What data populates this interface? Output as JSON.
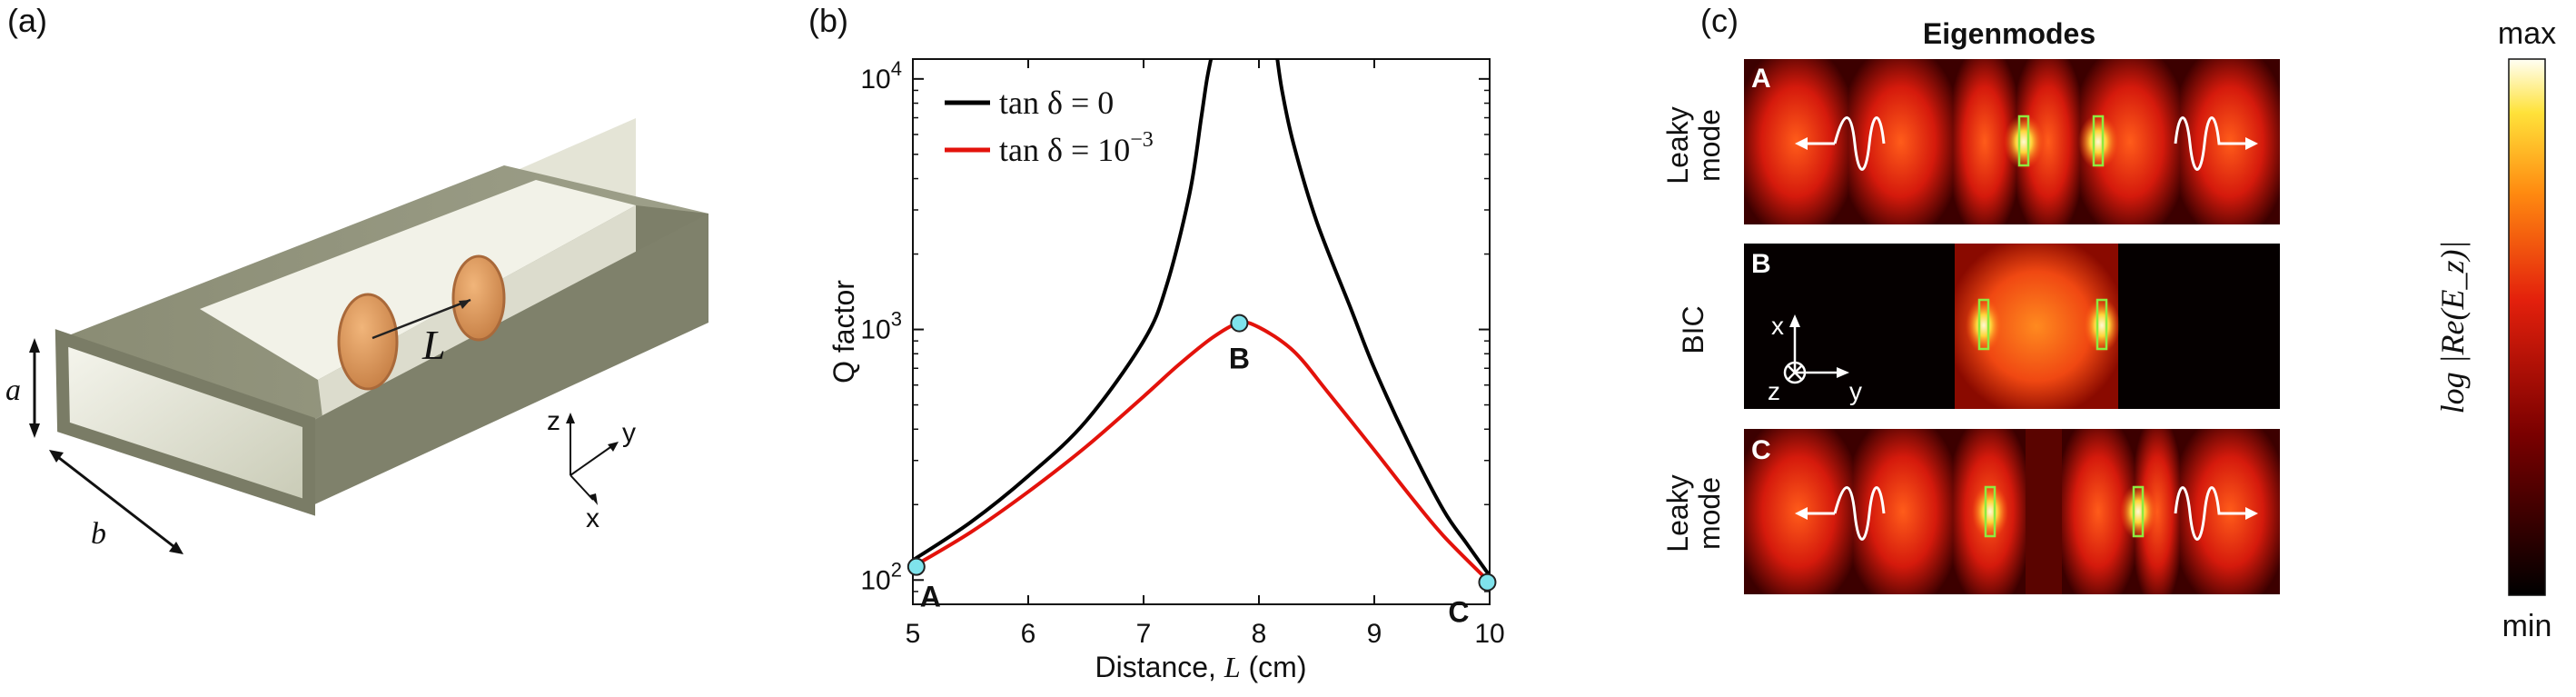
{
  "panels": {
    "a": "(a)",
    "b": "(b)",
    "c": "(c)"
  },
  "panel_a": {
    "length_label": "L",
    "dim_a": "a",
    "dim_b": "b",
    "axes": {
      "x": "x",
      "y": "y",
      "z": "z"
    },
    "colors": {
      "wall": "#8e907a",
      "disk": "#d4945a"
    }
  },
  "chart_data": {
    "type": "line",
    "title": "",
    "xlabel_prefix": "Distance, ",
    "xlabel_var": "L",
    "xlabel_suffix": " (cm)",
    "ylabel": "Q factor",
    "xlim": [
      5,
      10
    ],
    "ylim": [
      80,
      12000
    ],
    "yscale": "log",
    "xticks": [
      5,
      6,
      7,
      8,
      9,
      10
    ],
    "yticks": [
      {
        "value": 100,
        "base": "10",
        "exp": "2"
      },
      {
        "value": 1000,
        "base": "10",
        "exp": "3"
      },
      {
        "value": 10000,
        "base": "10",
        "exp": "4"
      }
    ],
    "series": [
      {
        "name": "tan δ = 0",
        "legend_prefix": "tan δ = 0",
        "legend_exp": "",
        "color": "#000000",
        "x": [
          5.0,
          5.5,
          6.0,
          6.5,
          7.0,
          7.2,
          7.4,
          7.5,
          7.55,
          7.6
        ],
        "y": [
          120,
          170,
          260,
          430,
          900,
          1500,
          3500,
          7000,
          10000,
          13000
        ]
      },
      {
        "name": "tan δ = 0",
        "legend_prefix": "",
        "legend_exp": "",
        "color": "#000000",
        "x": [
          8.15,
          8.2,
          8.3,
          8.5,
          8.8,
          9.0,
          9.3,
          9.6,
          9.8,
          10.0
        ],
        "y": [
          13000,
          9000,
          5500,
          2700,
          1200,
          700,
          350,
          190,
          140,
          104
        ]
      },
      {
        "name": "tan δ = 10^-3",
        "legend_prefix": "tan δ = 10",
        "legend_exp": "−3",
        "color": "#e3120b",
        "x": [
          5.0,
          5.5,
          6.0,
          6.5,
          7.0,
          7.3,
          7.6,
          7.83,
          8.0,
          8.3,
          8.6,
          9.0,
          9.3,
          9.6,
          10.0
        ],
        "y": [
          113,
          155,
          225,
          340,
          540,
          720,
          930,
          1060,
          1020,
          820,
          560,
          330,
          220,
          150,
          98
        ]
      }
    ],
    "points": [
      {
        "label": "A",
        "x": 5.03,
        "y": 113
      },
      {
        "label": "B",
        "x": 7.83,
        "y": 1060
      },
      {
        "label": "C",
        "x": 9.98,
        "y": 98
      }
    ],
    "marker_color": "#7fe3ec"
  },
  "panel_c": {
    "title": "Eigenmodes",
    "modes": [
      {
        "id": "A",
        "row_label_1": "Leaky",
        "row_label_2": "mode"
      },
      {
        "id": "B",
        "row_label_1": "BIC",
        "row_label_2": ""
      },
      {
        "id": "C",
        "row_label_1": "Leaky",
        "row_label_2": "mode"
      }
    ],
    "inset_axes": {
      "x": "x",
      "y": "y",
      "z": "z"
    },
    "colorbar": {
      "max": "max",
      "min": "min",
      "label": "log |Re(E_z)|"
    }
  }
}
